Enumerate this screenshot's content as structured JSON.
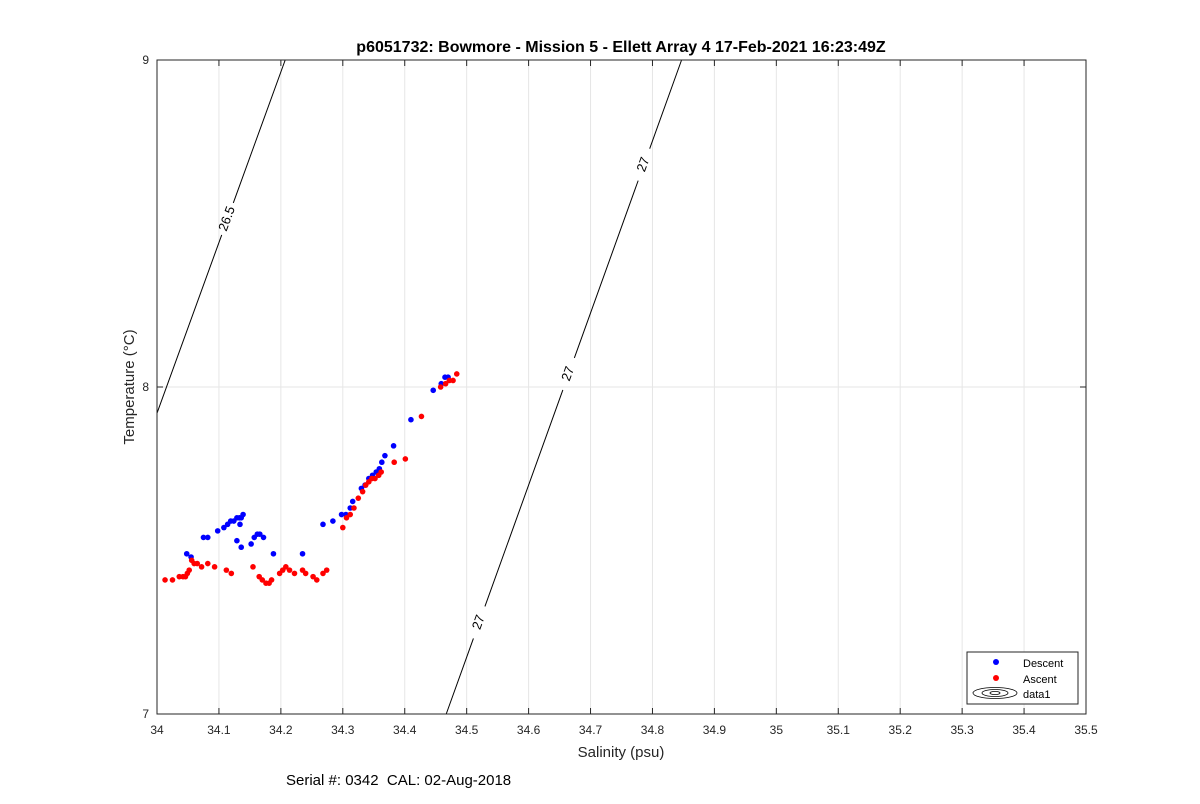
{
  "figure": {
    "title": "p6051732: Bowmore - Mission 5 - Ellett Array 4 17-Feb-2021 16:23:49Z",
    "footer": "Serial #: 0342  CAL: 02-Aug-2018"
  },
  "chart_data": {
    "type": "scatter",
    "title": "p6051732: Bowmore - Mission 5 - Ellett Array 4 17-Feb-2021 16:23:49Z",
    "xlabel": "Salinity (psu)",
    "ylabel": "Temperature (°C)",
    "xlim": [
      34,
      35.5
    ],
    "ylim": [
      7,
      9
    ],
    "xticks": [
      "34",
      "34.1",
      "34.2",
      "34.3",
      "34.4",
      "34.5",
      "34.6",
      "34.7",
      "34.8",
      "34.9",
      "35",
      "35.1",
      "35.2",
      "35.3",
      "35.4",
      "35.5"
    ],
    "yticks": [
      "7",
      "8",
      "9"
    ],
    "grid": true,
    "legend": {
      "position": "bottom-right",
      "entries": [
        "Descent",
        "Ascent",
        "data1"
      ]
    },
    "contours": [
      {
        "level": "26.5",
        "labels": [
          "26.5"
        ],
        "points": [
          [
            34.0,
            7.92
          ],
          [
            34.207,
            9.0
          ]
        ]
      },
      {
        "level": "27",
        "labels": [
          "27",
          "27",
          "27"
        ],
        "points": [
          [
            34.467,
            7.0
          ],
          [
            34.847,
            9.0
          ]
        ]
      }
    ],
    "series": [
      {
        "name": "Descent",
        "color": "#0000ff",
        "points": [
          [
            34.048,
            7.49
          ],
          [
            34.055,
            7.48
          ],
          [
            34.075,
            7.54
          ],
          [
            34.082,
            7.54
          ],
          [
            34.098,
            7.56
          ],
          [
            34.108,
            7.57
          ],
          [
            34.114,
            7.58
          ],
          [
            34.119,
            7.59
          ],
          [
            34.124,
            7.59
          ],
          [
            34.129,
            7.6
          ],
          [
            34.133,
            7.6
          ],
          [
            34.136,
            7.6
          ],
          [
            34.139,
            7.61
          ],
          [
            34.134,
            7.58
          ],
          [
            34.129,
            7.53
          ],
          [
            34.136,
            7.51
          ],
          [
            34.152,
            7.52
          ],
          [
            34.157,
            7.54
          ],
          [
            34.162,
            7.55
          ],
          [
            34.166,
            7.55
          ],
          [
            34.172,
            7.54
          ],
          [
            34.188,
            7.49
          ],
          [
            34.235,
            7.49
          ],
          [
            34.268,
            7.58
          ],
          [
            34.284,
            7.59
          ],
          [
            34.298,
            7.61
          ],
          [
            34.305,
            7.61
          ],
          [
            34.312,
            7.63
          ],
          [
            34.316,
            7.65
          ],
          [
            34.33,
            7.69
          ],
          [
            34.336,
            7.7
          ],
          [
            34.342,
            7.72
          ],
          [
            34.348,
            7.73
          ],
          [
            34.354,
            7.74
          ],
          [
            34.359,
            7.75
          ],
          [
            34.363,
            7.77
          ],
          [
            34.368,
            7.79
          ],
          [
            34.382,
            7.82
          ],
          [
            34.41,
            7.9
          ],
          [
            34.446,
            7.99
          ],
          [
            34.459,
            8.01
          ],
          [
            34.465,
            8.03
          ],
          [
            34.47,
            8.03
          ]
        ]
      },
      {
        "name": "Ascent",
        "color": "#ff0000",
        "points": [
          [
            34.013,
            7.41
          ],
          [
            34.025,
            7.41
          ],
          [
            34.036,
            7.42
          ],
          [
            34.042,
            7.42
          ],
          [
            34.046,
            7.42
          ],
          [
            34.049,
            7.43
          ],
          [
            34.052,
            7.44
          ],
          [
            34.056,
            7.47
          ],
          [
            34.06,
            7.46
          ],
          [
            34.065,
            7.46
          ],
          [
            34.072,
            7.45
          ],
          [
            34.082,
            7.46
          ],
          [
            34.093,
            7.45
          ],
          [
            34.112,
            7.44
          ],
          [
            34.12,
            7.43
          ],
          [
            34.155,
            7.45
          ],
          [
            34.165,
            7.42
          ],
          [
            34.17,
            7.41
          ],
          [
            34.176,
            7.4
          ],
          [
            34.181,
            7.4
          ],
          [
            34.185,
            7.41
          ],
          [
            34.198,
            7.43
          ],
          [
            34.203,
            7.44
          ],
          [
            34.208,
            7.45
          ],
          [
            34.214,
            7.44
          ],
          [
            34.222,
            7.43
          ],
          [
            34.235,
            7.44
          ],
          [
            34.24,
            7.43
          ],
          [
            34.252,
            7.42
          ],
          [
            34.258,
            7.41
          ],
          [
            34.268,
            7.43
          ],
          [
            34.274,
            7.44
          ],
          [
            34.3,
            7.57
          ],
          [
            34.306,
            7.6
          ],
          [
            34.312,
            7.61
          ],
          [
            34.318,
            7.63
          ],
          [
            34.325,
            7.66
          ],
          [
            34.332,
            7.68
          ],
          [
            34.337,
            7.7
          ],
          [
            34.342,
            7.71
          ],
          [
            34.347,
            7.72
          ],
          [
            34.352,
            7.72
          ],
          [
            34.358,
            7.73
          ],
          [
            34.362,
            7.74
          ],
          [
            34.383,
            7.77
          ],
          [
            34.401,
            7.78
          ],
          [
            34.427,
            7.91
          ],
          [
            34.458,
            8.0
          ],
          [
            34.466,
            8.01
          ],
          [
            34.472,
            8.02
          ],
          [
            34.478,
            8.02
          ],
          [
            34.484,
            8.04
          ]
        ]
      }
    ]
  }
}
